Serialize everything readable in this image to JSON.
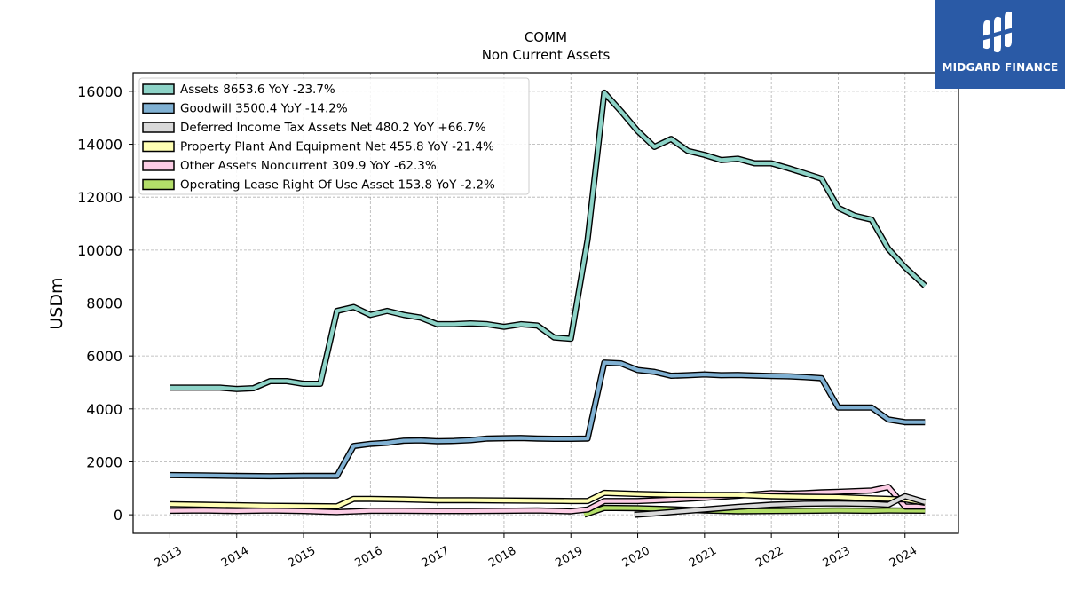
{
  "logo": {
    "text": "MIDGARD FINANCE"
  },
  "colors": {
    "assets": "#8dd3c7",
    "goodwill": "#80b1d3",
    "deferred": "#d9d9d9",
    "ppe": "#ffffb3",
    "other": "#fccde5",
    "lease": "#b3de69"
  },
  "chart_data": {
    "type": "line",
    "title": "COMM",
    "subtitle": "Non Current  Assets",
    "ylabel": "USDm",
    "xlabel": "",
    "ylim": [
      -700,
      16700
    ],
    "xlim": [
      2012.45,
      2024.8
    ],
    "yticks": [
      0,
      2000,
      4000,
      6000,
      8000,
      10000,
      12000,
      14000,
      16000
    ],
    "xticks": [
      2013,
      2014,
      2015,
      2016,
      2017,
      2018,
      2019,
      2020,
      2021,
      2022,
      2023,
      2024
    ],
    "grid": true,
    "legend_position": "top-left",
    "series": [
      {
        "name": "Assets  8653.6 YoY -23.7%",
        "color_key": "assets",
        "points": [
          [
            2013.0,
            4800
          ],
          [
            2013.25,
            4800
          ],
          [
            2013.5,
            4800
          ],
          [
            2013.75,
            4800
          ],
          [
            2014.0,
            4750
          ],
          [
            2014.25,
            4780
          ],
          [
            2014.5,
            5050
          ],
          [
            2014.75,
            5050
          ],
          [
            2015.0,
            4950
          ],
          [
            2015.25,
            4950
          ],
          [
            2015.5,
            7700
          ],
          [
            2015.75,
            7850
          ],
          [
            2016.0,
            7550
          ],
          [
            2016.25,
            7700
          ],
          [
            2016.5,
            7550
          ],
          [
            2016.75,
            7450
          ],
          [
            2017.0,
            7200
          ],
          [
            2017.25,
            7200
          ],
          [
            2017.5,
            7230
          ],
          [
            2017.75,
            7200
          ],
          [
            2018.0,
            7100
          ],
          [
            2018.25,
            7200
          ],
          [
            2018.5,
            7150
          ],
          [
            2018.75,
            6700
          ],
          [
            2019.0,
            6650
          ],
          [
            2019.25,
            10400
          ],
          [
            2019.5,
            15950
          ],
          [
            2019.75,
            15250
          ],
          [
            2020.0,
            14500
          ],
          [
            2020.25,
            13900
          ],
          [
            2020.5,
            14200
          ],
          [
            2020.75,
            13750
          ],
          [
            2021.0,
            13600
          ],
          [
            2021.25,
            13400
          ],
          [
            2021.5,
            13450
          ],
          [
            2021.75,
            13280
          ],
          [
            2022.0,
            13280
          ],
          [
            2022.25,
            13100
          ],
          [
            2022.5,
            12900
          ],
          [
            2022.75,
            12700
          ],
          [
            2023.0,
            11600
          ],
          [
            2023.25,
            11300
          ],
          [
            2023.5,
            11150
          ],
          [
            2023.75,
            10050
          ],
          [
            2024.0,
            9350
          ],
          [
            2024.3,
            8653.6
          ]
        ]
      },
      {
        "name": "Goodwill  3500.4 YoY -14.2%",
        "color_key": "goodwill",
        "points": [
          [
            2013.0,
            1500
          ],
          [
            2013.5,
            1490
          ],
          [
            2014.0,
            1470
          ],
          [
            2014.5,
            1460
          ],
          [
            2015.0,
            1470
          ],
          [
            2015.5,
            1470
          ],
          [
            2015.75,
            2600
          ],
          [
            2016.0,
            2680
          ],
          [
            2016.25,
            2720
          ],
          [
            2016.5,
            2800
          ],
          [
            2016.75,
            2810
          ],
          [
            2017.0,
            2780
          ],
          [
            2017.25,
            2790
          ],
          [
            2017.5,
            2820
          ],
          [
            2017.75,
            2880
          ],
          [
            2018.0,
            2890
          ],
          [
            2018.25,
            2900
          ],
          [
            2018.5,
            2880
          ],
          [
            2018.75,
            2870
          ],
          [
            2019.0,
            2870
          ],
          [
            2019.25,
            2880
          ],
          [
            2019.5,
            5750
          ],
          [
            2019.75,
            5720
          ],
          [
            2020.0,
            5470
          ],
          [
            2020.25,
            5400
          ],
          [
            2020.5,
            5250
          ],
          [
            2020.75,
            5270
          ],
          [
            2021.0,
            5300
          ],
          [
            2021.25,
            5270
          ],
          [
            2021.5,
            5280
          ],
          [
            2021.75,
            5260
          ],
          [
            2022.0,
            5240
          ],
          [
            2022.25,
            5230
          ],
          [
            2022.5,
            5200
          ],
          [
            2022.75,
            5160
          ],
          [
            2023.0,
            4050
          ],
          [
            2023.25,
            4050
          ],
          [
            2023.5,
            4050
          ],
          [
            2023.75,
            3600
          ],
          [
            2024.0,
            3500
          ],
          [
            2024.3,
            3500.4
          ]
        ]
      },
      {
        "name": "Deferred Income Tax Assets Net  480.2 YoY +66.7%",
        "color_key": "deferred",
        "points": [
          [
            2019.95,
            0
          ],
          [
            2020.25,
            50
          ],
          [
            2020.75,
            150
          ],
          [
            2021.0,
            200
          ],
          [
            2021.5,
            300
          ],
          [
            2022.0,
            380
          ],
          [
            2022.5,
            420
          ],
          [
            2023.0,
            430
          ],
          [
            2023.5,
            410
          ],
          [
            2023.75,
            380
          ],
          [
            2024.0,
            700
          ],
          [
            2024.3,
            480.2
          ]
        ]
      },
      {
        "name": "Property Plant And Equipment Net  455.8 YoY -21.4%",
        "color_key": "ppe",
        "points": [
          [
            2013.0,
            400
          ],
          [
            2013.5,
            380
          ],
          [
            2014.0,
            360
          ],
          [
            2014.5,
            340
          ],
          [
            2015.0,
            330
          ],
          [
            2015.5,
            320
          ],
          [
            2015.75,
            600
          ],
          [
            2016.0,
            600
          ],
          [
            2016.5,
            580
          ],
          [
            2017.0,
            550
          ],
          [
            2017.5,
            550
          ],
          [
            2018.0,
            540
          ],
          [
            2018.5,
            530
          ],
          [
            2019.0,
            520
          ],
          [
            2019.25,
            520
          ],
          [
            2019.5,
            830
          ],
          [
            2020.0,
            790
          ],
          [
            2020.5,
            760
          ],
          [
            2021.0,
            750
          ],
          [
            2021.5,
            750
          ],
          [
            2022.0,
            700
          ],
          [
            2022.5,
            680
          ],
          [
            2023.0,
            670
          ],
          [
            2023.5,
            620
          ],
          [
            2023.75,
            600
          ],
          [
            2024.0,
            580
          ],
          [
            2024.3,
            455.8
          ]
        ]
      },
      {
        "name": "Other Assets Noncurrent  309.9 YoY -62.3%",
        "color_key": "other",
        "points": [
          [
            2013.0,
            150
          ],
          [
            2013.5,
            160
          ],
          [
            2014.0,
            140
          ],
          [
            2014.5,
            160
          ],
          [
            2015.0,
            140
          ],
          [
            2015.5,
            100
          ],
          [
            2016.0,
            150
          ],
          [
            2016.5,
            150
          ],
          [
            2017.0,
            140
          ],
          [
            2017.5,
            140
          ],
          [
            2018.0,
            150
          ],
          [
            2018.5,
            160
          ],
          [
            2019.0,
            130
          ],
          [
            2019.25,
            200
          ],
          [
            2019.5,
            520
          ],
          [
            2020.0,
            520
          ],
          [
            2020.5,
            570
          ],
          [
            2021.0,
            640
          ],
          [
            2021.5,
            720
          ],
          [
            2022.0,
            820
          ],
          [
            2022.25,
            800
          ],
          [
            2022.5,
            820
          ],
          [
            2022.75,
            850
          ],
          [
            2023.0,
            870
          ],
          [
            2023.5,
            920
          ],
          [
            2023.75,
            1050
          ],
          [
            2024.0,
            310
          ],
          [
            2024.3,
            309.9
          ]
        ]
      },
      {
        "name": "Operating Lease Right Of Use Asset  153.8 YoY -2.2%",
        "color_key": "lease",
        "points": [
          [
            2019.2,
            0
          ],
          [
            2019.5,
            260
          ],
          [
            2020.0,
            250
          ],
          [
            2020.5,
            210
          ],
          [
            2021.0,
            160
          ],
          [
            2021.5,
            130
          ],
          [
            2022.0,
            140
          ],
          [
            2022.5,
            150
          ],
          [
            2023.0,
            160
          ],
          [
            2023.5,
            150
          ],
          [
            2023.75,
            160
          ],
          [
            2024.0,
            157
          ],
          [
            2024.3,
            153.8
          ]
        ]
      }
    ]
  }
}
